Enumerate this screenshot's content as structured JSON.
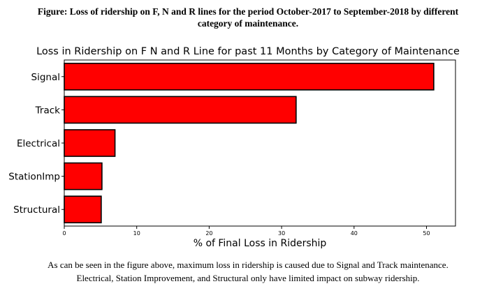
{
  "figure_caption": {
    "line1": "Figure: Loss of ridership on F, N and R lines for the period October-2017 to September-2018  by different",
    "line2": "category of maintenance."
  },
  "chart_data": {
    "type": "bar",
    "orientation": "horizontal",
    "title": "Loss in Ridership on F N and R Line for past 11 Months by Category of Maintenance",
    "xlabel": "% of Final Loss in Ridership",
    "ylabel": "",
    "categories": [
      "Signal",
      "Track",
      "Electrical",
      "StationImp",
      "Structural"
    ],
    "values": [
      51,
      32,
      7,
      5.2,
      5.1
    ],
    "xlim": [
      0,
      54
    ],
    "xticks": [
      0,
      10,
      20,
      30,
      40,
      50
    ],
    "grid": false,
    "bar_color": "#ff0000",
    "bar_edge_color": "#000000"
  },
  "footer": {
    "line1": "As can be seen in the figure above, maximum loss in ridership is caused due to Signal and Track maintenance.",
    "line2": "Electrical, Station Improvement, and Structural only have limited impact on subway ridership."
  }
}
